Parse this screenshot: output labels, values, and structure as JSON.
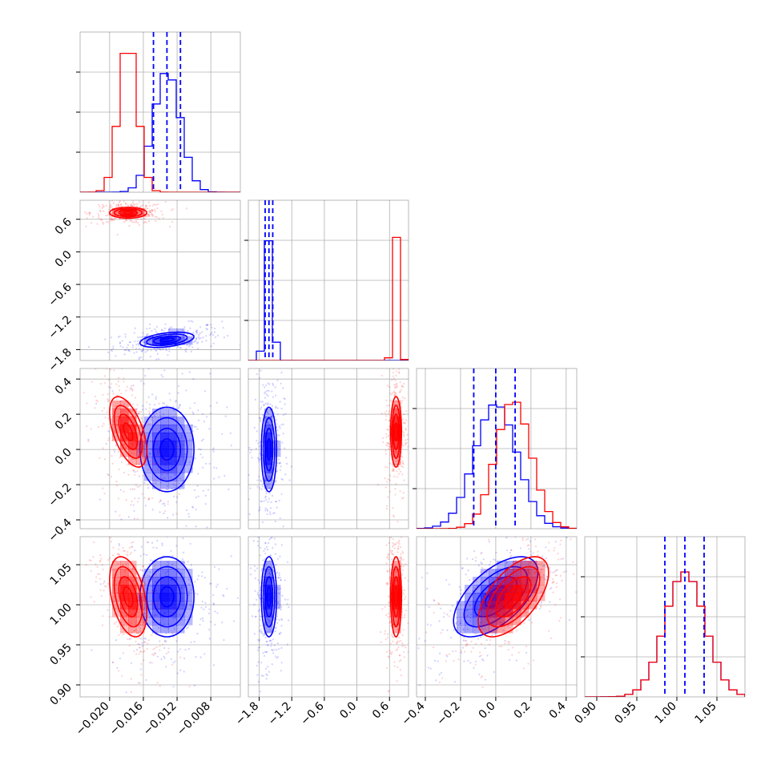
{
  "colors": {
    "series_a": "#0000ff",
    "series_b": "#ff0000",
    "grid": "#b0b0b0",
    "frame": "#000000"
  },
  "chart_data": {
    "type": "corner",
    "grid": true,
    "n_params": 4,
    "series": [
      {
        "color": "#0000ff",
        "medians": [
          -0.0132,
          -1.62,
          0.0,
          1.01
        ],
        "quantiles_16_84": [
          [
            -0.0148,
            -0.0116
          ],
          [
            -1.69,
            -1.55
          ],
          [
            -0.125,
            0.11
          ],
          [
            0.985,
            1.034
          ]
        ],
        "sigmas": [
          0.0016,
          0.07,
          0.12,
          0.025
        ],
        "correlations": {
          "0-1": 0.4,
          "0-2": 0.0,
          "0-3": 0.0,
          "1-2": 0.0,
          "1-3": 0.0,
          "2-3": 0.6
        }
      },
      {
        "color": "#ff0000",
        "medians": [
          -0.0178,
          0.72,
          0.1,
          1.01
        ],
        "sigmas": [
          0.0011,
          0.05,
          0.1,
          0.025
        ],
        "correlations": {
          "0-1": 0.0,
          "0-2": -0.55,
          "0-3": -0.4,
          "1-2": 0.0,
          "1-3": 0.0,
          "2-3": 0.6
        }
      }
    ],
    "axes": [
      {
        "range": [
          -0.0235,
          -0.0045
        ],
        "ticks": [
          "-0.020",
          "-0.016",
          "-0.012",
          "-0.008"
        ],
        "tick_values": [
          -0.02,
          -0.016,
          -0.012,
          -0.008
        ]
      },
      {
        "range": [
          -2.0,
          0.95
        ],
        "ticks": [
          "-1.8",
          "-1.2",
          "-0.6",
          "0.0",
          "0.6"
        ],
        "tick_values": [
          -1.8,
          -1.2,
          -0.6,
          0.0,
          0.6
        ]
      },
      {
        "range": [
          -0.45,
          0.46
        ],
        "ticks": [
          "-0.4",
          "-0.2",
          "0.0",
          "0.2",
          "0.4"
        ],
        "tick_values": [
          -0.4,
          -0.2,
          0.0,
          0.2,
          0.4
        ]
      },
      {
        "range": [
          0.885,
          1.085
        ],
        "ticks": [
          "0.90",
          "0.95",
          "1.00",
          "1.05"
        ],
        "tick_values": [
          0.9,
          0.95,
          1.0,
          1.05
        ]
      }
    ],
    "histogram_peaks": {
      "0": {
        "blue": 0.97,
        "red": 1.22
      },
      "1": {
        "blue": 0.97,
        "red": 1.0
      },
      "2": {
        "blue": 1.0,
        "red": 1.03
      },
      "3": {
        "blue": 1.0,
        "red": 1.0
      }
    }
  }
}
